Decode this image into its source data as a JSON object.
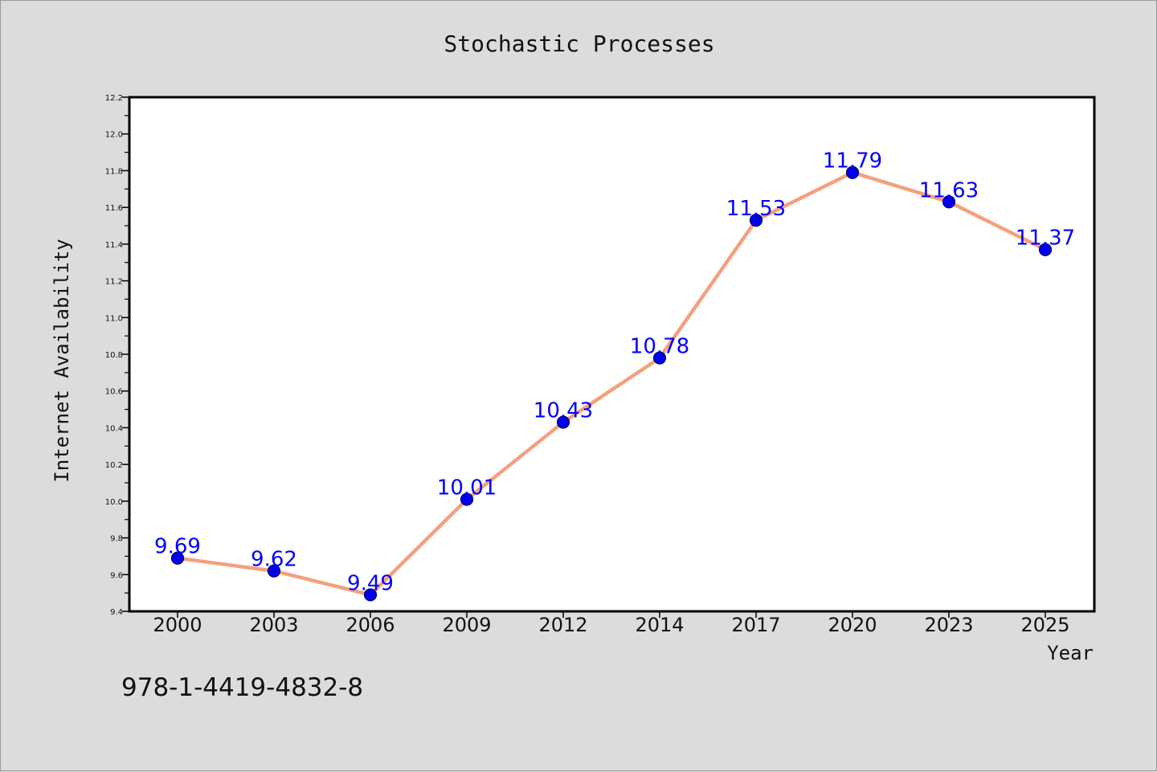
{
  "chart_data": {
    "type": "line",
    "title": "Stochastic Processes",
    "xlabel": "Year",
    "ylabel": "Internet Availability",
    "categories": [
      "2000",
      "2003",
      "2006",
      "2009",
      "2012",
      "2014",
      "2017",
      "2020",
      "2023",
      "2025"
    ],
    "series": [
      {
        "values": [
          9.69,
          9.62,
          9.49,
          10.01,
          10.43,
          10.78,
          11.53,
          11.79,
          11.63,
          11.37
        ],
        "data_labels": [
          "9.69",
          "9.62",
          "9.49",
          "10.01",
          "10.43",
          "10.78",
          "11.53",
          "11.79",
          "11.63",
          "11.37"
        ]
      }
    ],
    "ylim": [
      9.4,
      12.2
    ],
    "yticks": [
      "9.4",
      "9.6",
      "9.8",
      "10.0",
      "10.2",
      "10.4",
      "10.6",
      "10.8",
      "11.0",
      "11.2",
      "11.4",
      "11.6",
      "11.8",
      "12.0",
      "12.2"
    ],
    "grid": false,
    "legend": "none",
    "colors": {
      "line": "#f4a07f",
      "marker": "#0000ee",
      "label": "#0000ff",
      "background": "#dcdcdc",
      "plot_area": "#ffffff",
      "axis": "#000000"
    }
  },
  "footer": {
    "code": "978-1-4419-4832-8"
  }
}
